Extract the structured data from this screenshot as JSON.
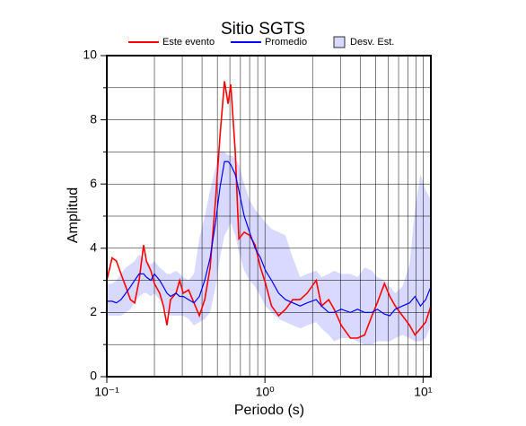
{
  "chart_data": {
    "type": "line",
    "title": "Sitio SGTS",
    "x_label": "Periodo (s)",
    "y_label": "Amplitud",
    "log_x": true,
    "grid": true,
    "legend": "top",
    "xlim": [
      0.1,
      11.2
    ],
    "xticks": [
      {
        "value": 0.1,
        "label": "10⁻¹"
      },
      {
        "value": 1,
        "label": "10⁰"
      },
      {
        "value": 10,
        "label": "10¹"
      }
    ],
    "ylim": [
      0,
      10
    ],
    "yticks": [
      0,
      2,
      4,
      6,
      8,
      10
    ],
    "x": [
      0.1,
      0.108,
      0.115,
      0.123,
      0.132,
      0.141,
      0.15,
      0.16,
      0.171,
      0.178,
      0.19,
      0.2,
      0.216,
      0.228,
      0.24,
      0.253,
      0.274,
      0.289,
      0.304,
      0.329,
      0.356,
      0.385,
      0.416,
      0.45,
      0.487,
      0.52,
      0.555,
      0.585,
      0.608,
      0.649,
      0.684,
      0.74,
      0.8,
      0.866,
      0.937,
      1.01,
      1.1,
      1.22,
      1.35,
      1.5,
      1.67,
      1.85,
      2.11,
      2.28,
      2.53,
      2.74,
      3.04,
      3.47,
      3.85,
      4.27,
      4.75,
      5.13,
      5.7,
      6.16,
      6.67,
      7.4,
      8.22,
      8.89,
      9.62,
      10.4,
      11.2
    ],
    "series": [
      {
        "name": "Este evento",
        "color": "#ff0000",
        "values": [
          3.0,
          3.7,
          3.6,
          3.2,
          2.8,
          2.4,
          2.3,
          3.0,
          4.1,
          3.6,
          3.3,
          2.9,
          2.6,
          2.2,
          1.6,
          2.4,
          2.6,
          3.0,
          2.6,
          2.7,
          2.3,
          1.9,
          2.4,
          3.4,
          5.5,
          7.5,
          9.2,
          8.5,
          9.1,
          7.0,
          4.3,
          4.5,
          4.4,
          4.1,
          3.4,
          2.9,
          2.2,
          1.9,
          2.1,
          2.4,
          2.4,
          2.6,
          3.0,
          2.2,
          2.4,
          2.1,
          1.6,
          1.2,
          1.2,
          1.3,
          1.9,
          2.3,
          2.9,
          2.5,
          2.2,
          1.9,
          1.6,
          1.3,
          1.5,
          1.7,
          2.2
        ]
      },
      {
        "name": "Promedio",
        "color": "#0000ff",
        "values": [
          2.35,
          2.35,
          2.3,
          2.4,
          2.6,
          2.8,
          3.0,
          3.2,
          3.2,
          3.1,
          3.0,
          3.2,
          3.0,
          2.8,
          2.6,
          2.5,
          2.6,
          2.5,
          2.5,
          2.4,
          2.3,
          2.5,
          3.0,
          3.7,
          4.8,
          5.9,
          6.7,
          6.7,
          6.6,
          6.3,
          5.8,
          5.0,
          4.5,
          4.0,
          3.7,
          3.3,
          3.0,
          2.6,
          2.4,
          2.3,
          2.2,
          2.3,
          2.4,
          2.2,
          2.0,
          2.0,
          2.1,
          2.0,
          2.1,
          2.0,
          2.0,
          2.1,
          1.95,
          1.9,
          2.1,
          2.2,
          2.3,
          2.5,
          2.2,
          2.4,
          2.8
        ]
      }
    ],
    "band": {
      "name": "Desv. Est.",
      "color": "#d9d9ff",
      "upper": [
        2.9,
        2.9,
        3.0,
        3.2,
        3.4,
        3.5,
        3.6,
        3.8,
        3.7,
        3.6,
        3.5,
        3.6,
        3.4,
        3.3,
        3.2,
        3.2,
        3.3,
        3.2,
        3.1,
        3.0,
        3.2,
        4.3,
        5.0,
        5.8,
        6.5,
        7.0,
        7.0,
        6.9,
        6.9,
        6.8,
        6.6,
        6.0,
        5.5,
        5.2,
        5.0,
        4.8,
        4.6,
        4.5,
        4.4,
        3.7,
        3.1,
        3.2,
        3.3,
        3.1,
        3.2,
        3.3,
        3.2,
        3.2,
        3.1,
        3.4,
        3.3,
        3.1,
        3.0,
        2.8,
        2.6,
        2.8,
        3.5,
        5.2,
        6.3,
        5.8,
        5.5
      ],
      "lower": [
        1.9,
        1.9,
        1.9,
        1.9,
        2.0,
        2.1,
        2.3,
        2.5,
        2.6,
        2.6,
        2.5,
        2.6,
        2.4,
        2.2,
        2.0,
        1.9,
        1.9,
        1.9,
        1.9,
        1.8,
        1.6,
        1.7,
        1.8,
        2.0,
        2.8,
        3.7,
        4.4,
        4.6,
        4.8,
        4.4,
        3.9,
        3.3,
        3.0,
        2.8,
        2.5,
        2.2,
        2.0,
        1.8,
        1.7,
        1.6,
        1.5,
        1.6,
        1.7,
        1.5,
        1.3,
        1.1,
        1.2,
        1.2,
        1.1,
        1.0,
        1.0,
        1.1,
        1.1,
        1.1,
        1.2,
        1.3,
        1.2,
        1.1,
        1.1,
        1.2,
        1.6
      ]
    }
  }
}
